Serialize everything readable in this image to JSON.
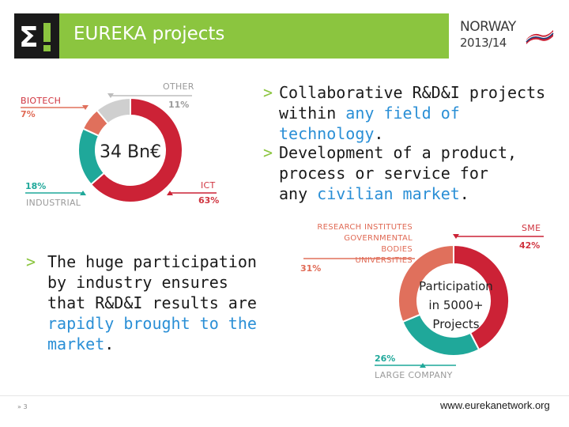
{
  "header": {
    "logo_glyph": "Σ!",
    "title": "EUREKA projects",
    "norway": "NORWAY",
    "year": "2013/14",
    "bar_color": "#8bc53f"
  },
  "bullets": [
    {
      "plain": "Collaborative R&D&I projects within ",
      "highlight": "any field of technology",
      "end": "."
    },
    {
      "plain": "Development of a product, process or service for any ",
      "highlight": "civilian market",
      "end": "."
    },
    {
      "plain": "The huge participation by industry ensures that R&D&I results are ",
      "highlight": "rapidly brought to the market",
      "end": "."
    }
  ],
  "chart_data": [
    {
      "type": "pie",
      "center_label": "34 Bn€",
      "slices": [
        {
          "label": "ICT",
          "value": 63,
          "pct_text": "63%",
          "color": "#cc2236"
        },
        {
          "label": "INDUSTRIAL",
          "value": 18,
          "pct_text": "18%",
          "color": "#1fa89a"
        },
        {
          "label": "BIOTECH",
          "value": 7,
          "pct_text": "7%",
          "color": "#e0705c"
        },
        {
          "label": "OTHER",
          "value": 11,
          "pct_text": "11%",
          "color": "#cfcfcf"
        }
      ]
    },
    {
      "type": "pie",
      "center_label_lines": [
        "Participation",
        "in 5000+",
        "Projects"
      ],
      "slices": [
        {
          "label": "SME",
          "value": 42,
          "pct_text": "42%",
          "color": "#cc2236"
        },
        {
          "label": "LARGE COMPANY",
          "value": 26,
          "pct_text": "26%",
          "color": "#1fa89a"
        },
        {
          "label_lines": [
            "RESEARCH INSTITUTES",
            "GOVERNMENTAL BODIES",
            "UNIVERSITIES"
          ],
          "value": 31,
          "pct_text": "31%",
          "color": "#e0705c"
        }
      ]
    }
  ],
  "footer": {
    "page": "» 3",
    "url": "www.eurekanetwork.org"
  }
}
